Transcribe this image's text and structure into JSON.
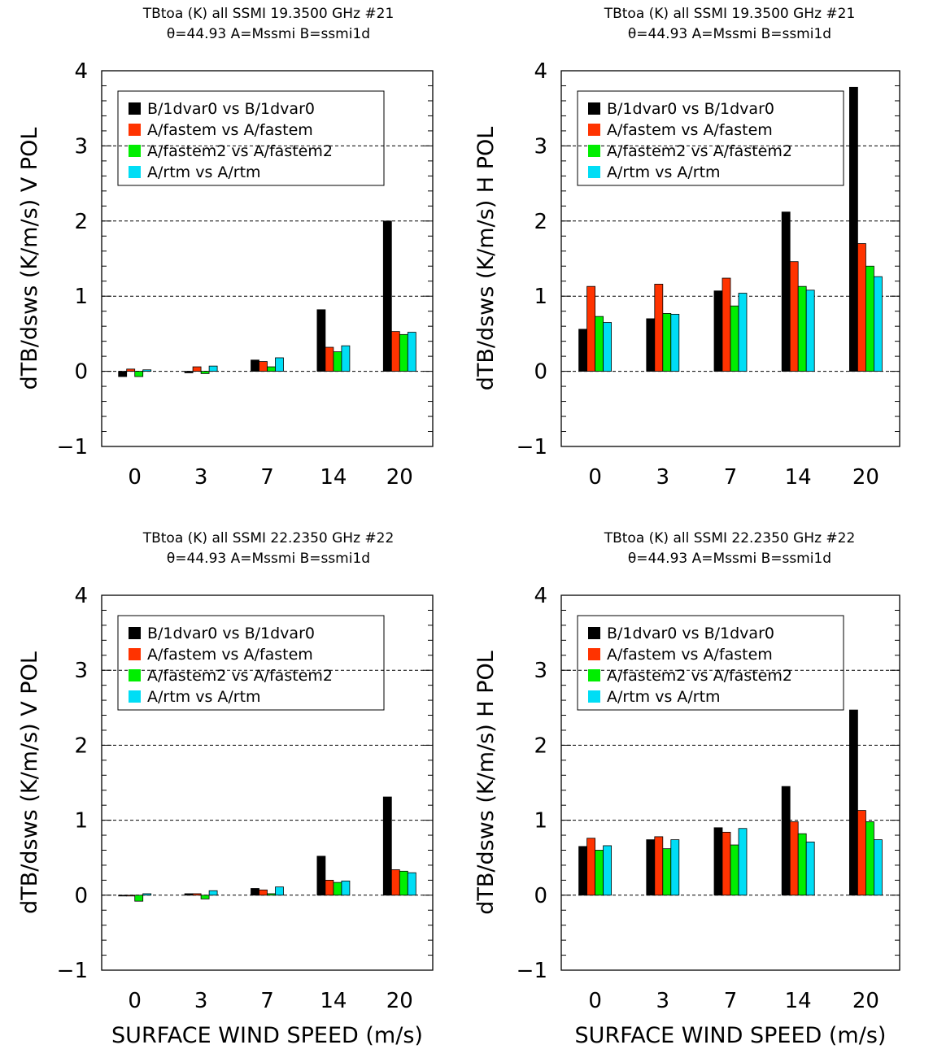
{
  "page": {
    "x_axis_title": "SURFACE WIND SPEED (m/s)"
  },
  "colors": {
    "series": [
      "#000000",
      "#ff3300",
      "#00ee00",
      "#00ddf5"
    ],
    "gridline": "#000000"
  },
  "chart_data": [
    {
      "type": "bar",
      "title": "TBtoa (K) all SSMI 19.3500 GHz #21",
      "subtitle": "θ=44.93 A=Mssmi B=ssmi1d",
      "ylabel": "dTB/dsws (K/m/s) V POL",
      "xlabel": "",
      "categories": [
        "0",
        "3",
        "7",
        "14",
        "20"
      ],
      "ylim": [
        -1,
        4
      ],
      "yticks": [
        "−1",
        "0",
        "1",
        "2",
        "3",
        "4"
      ],
      "gridlines_y": [
        0,
        1,
        2,
        3
      ],
      "legend_position": "top-left",
      "series": [
        {
          "name": "B/1dvar0 vs B/1dvar0",
          "values": [
            -0.07,
            -0.02,
            0.15,
            0.82,
            2.0
          ]
        },
        {
          "name": "A/fastem vs A/fastem",
          "values": [
            0.03,
            0.06,
            0.13,
            0.32,
            0.53
          ]
        },
        {
          "name": "A/fastem2 vs A/fastem2",
          "values": [
            -0.07,
            -0.03,
            0.06,
            0.26,
            0.49
          ]
        },
        {
          "name": "A/rtm vs A/rtm",
          "values": [
            0.02,
            0.07,
            0.18,
            0.34,
            0.52
          ]
        }
      ]
    },
    {
      "type": "bar",
      "title": "TBtoa (K) all SSMI 19.3500 GHz #21",
      "subtitle": "θ=44.93 A=Mssmi B=ssmi1d",
      "ylabel": "dTB/dsws (K/m/s) H POL",
      "xlabel": "",
      "categories": [
        "0",
        "3",
        "7",
        "14",
        "20"
      ],
      "ylim": [
        -1,
        4
      ],
      "yticks": [
        "−1",
        "0",
        "1",
        "2",
        "3",
        "4"
      ],
      "gridlines_y": [
        0,
        1,
        2,
        3
      ],
      "legend_position": "top-left",
      "series": [
        {
          "name": "B/1dvar0 vs B/1dvar0",
          "values": [
            0.56,
            0.7,
            1.07,
            2.12,
            3.78
          ]
        },
        {
          "name": "A/fastem vs A/fastem",
          "values": [
            1.13,
            1.16,
            1.24,
            1.46,
            1.7
          ]
        },
        {
          "name": "A/fastem2 vs A/fastem2",
          "values": [
            0.73,
            0.77,
            0.87,
            1.13,
            1.4
          ]
        },
        {
          "name": "A/rtm vs A/rtm",
          "values": [
            0.65,
            0.76,
            1.04,
            1.08,
            1.26
          ]
        }
      ]
    },
    {
      "type": "bar",
      "title": "TBtoa (K) all SSMI 22.2350 GHz #22",
      "subtitle": "θ=44.93 A=Mssmi B=ssmi1d",
      "ylabel": "dTB/dsws (K/m/s) V POL",
      "xlabel": "SURFACE WIND SPEED (m/s)",
      "categories": [
        "0",
        "3",
        "7",
        "14",
        "20"
      ],
      "ylim": [
        -1,
        4
      ],
      "yticks": [
        "−1",
        "0",
        "1",
        "2",
        "3",
        "4"
      ],
      "gridlines_y": [
        0,
        1,
        2,
        3
      ],
      "legend_position": "top-left",
      "series": [
        {
          "name": "B/1dvar0 vs B/1dvar0",
          "values": [
            -0.01,
            0.02,
            0.09,
            0.52,
            1.31
          ]
        },
        {
          "name": "A/fastem vs A/fastem",
          "values": [
            -0.01,
            0.02,
            0.07,
            0.2,
            0.34
          ]
        },
        {
          "name": "A/fastem2 vs A/fastem2",
          "values": [
            -0.08,
            -0.05,
            0.02,
            0.17,
            0.32
          ]
        },
        {
          "name": "A/rtm vs A/rtm",
          "values": [
            0.02,
            0.06,
            0.11,
            0.19,
            0.3
          ]
        }
      ]
    },
    {
      "type": "bar",
      "title": "TBtoa (K) all SSMI 22.2350 GHz #22",
      "subtitle": "θ=44.93 A=Mssmi B=ssmi1d",
      "ylabel": "dTB/dsws (K/m/s) H POL",
      "xlabel": "SURFACE WIND SPEED (m/s)",
      "categories": [
        "0",
        "3",
        "7",
        "14",
        "20"
      ],
      "ylim": [
        -1,
        4
      ],
      "yticks": [
        "−1",
        "0",
        "1",
        "2",
        "3",
        "4"
      ],
      "gridlines_y": [
        0,
        1,
        2,
        3
      ],
      "legend_position": "top-left",
      "series": [
        {
          "name": "B/1dvar0 vs B/1dvar0",
          "values": [
            0.65,
            0.74,
            0.9,
            1.45,
            2.47
          ]
        },
        {
          "name": "A/fastem vs A/fastem",
          "values": [
            0.76,
            0.78,
            0.84,
            0.98,
            1.13
          ]
        },
        {
          "name": "A/fastem2 vs A/fastem2",
          "values": [
            0.6,
            0.62,
            0.67,
            0.82,
            0.98
          ]
        },
        {
          "name": "A/rtm vs A/rtm",
          "values": [
            0.66,
            0.74,
            0.89,
            0.71,
            0.74
          ]
        }
      ]
    }
  ]
}
